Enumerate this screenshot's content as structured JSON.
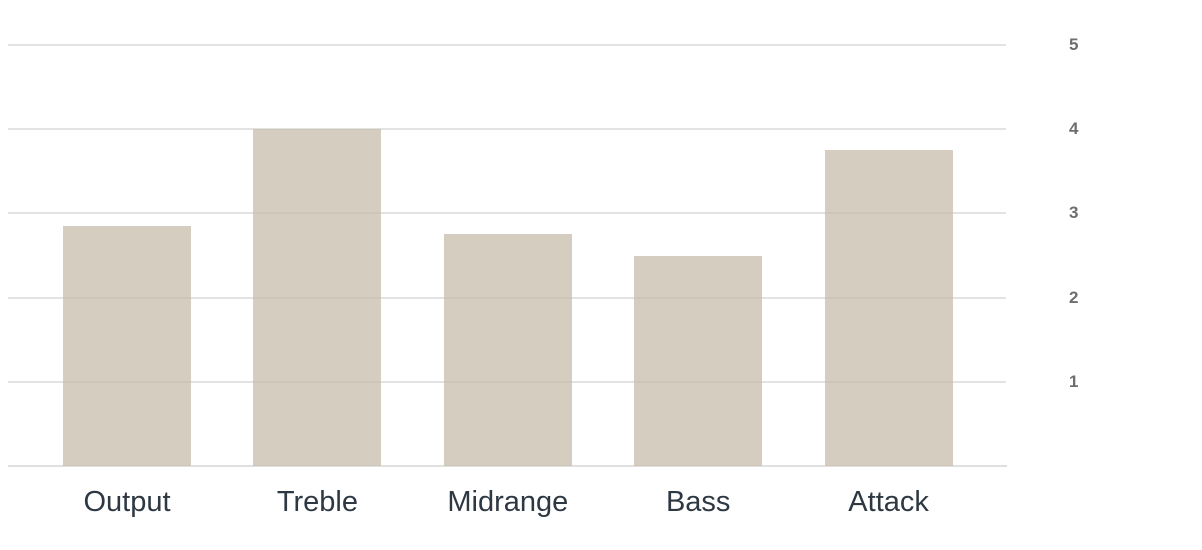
{
  "chart_data": {
    "type": "bar",
    "title": "",
    "xlabel": "",
    "ylabel": "",
    "categories": [
      "Output",
      "Treble",
      "Midrange",
      "Bass",
      "Attack"
    ],
    "values": [
      2.85,
      4,
      2.75,
      2.5,
      3.75
    ],
    "ylim": [
      0,
      5
    ],
    "yticks": [
      1,
      2,
      3,
      4,
      5
    ],
    "grid": true,
    "axis_side": "right",
    "legend": false
  },
  "colors": {
    "bar_fill": "#d5cfc3",
    "gridline": "#e3e3e3",
    "axis_line": "#e0e0e0",
    "category_label": "#2e3842",
    "tick_label": "#6e6e6e",
    "background": "#ffffff"
  }
}
